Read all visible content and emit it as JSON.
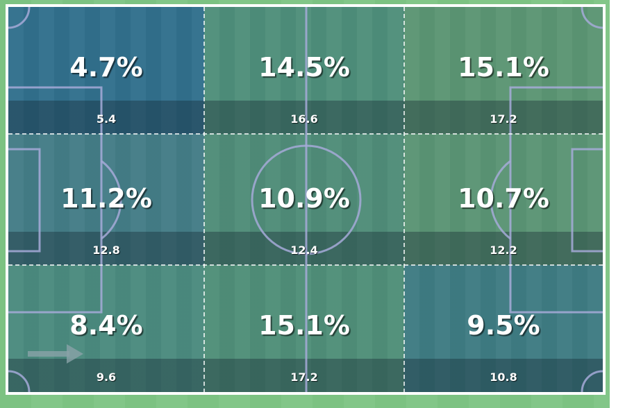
{
  "chart_data": {
    "type": "heatmap",
    "title": "",
    "rows": 3,
    "cols": 3,
    "cells": [
      [
        {
          "pct": "4.7%",
          "value": "5.4",
          "color": "#316f8c"
        },
        {
          "pct": "14.5%",
          "value": "16.6",
          "color": "#4e8e7a"
        },
        {
          "pct": "15.1%",
          "value": "17.2",
          "color": "#5b9573"
        }
      ],
      [
        {
          "pct": "11.2%",
          "value": "12.8",
          "color": "#437c86"
        },
        {
          "pct": "10.9%",
          "value": "12.4",
          "color": "#4f8c78"
        },
        {
          "pct": "10.7%",
          "value": "12.2",
          "color": "#5a9474"
        }
      ],
      [
        {
          "pct": "8.4%",
          "value": "9.6",
          "color": "#4a8a7e"
        },
        {
          "pct": "15.1%",
          "value": "17.2",
          "color": "#4f8e78"
        },
        {
          "pct": "9.5%",
          "value": "10.8",
          "color": "#3e7b82"
        }
      ]
    ],
    "direction": "left-to-right"
  }
}
